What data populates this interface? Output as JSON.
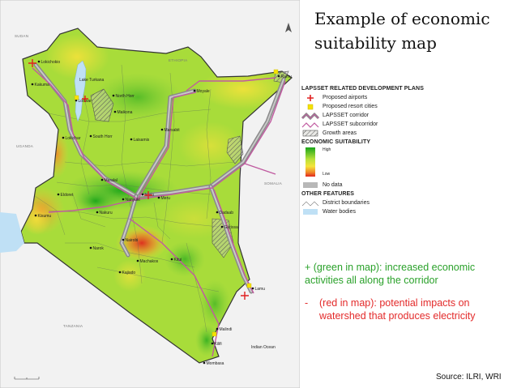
{
  "title_lines": [
    "Example of economic",
    "suitability map"
  ],
  "legend": {
    "dev_plans_heading": "LAPSSET RELATED DEVELOPMENT PLANS",
    "proposed_airports": "Proposed airports",
    "proposed_resort_cities": "Proposed resort cities",
    "lapsset_corridor": "LAPSSET corridor",
    "lapsset_subcorridor": "LAPSSET subcorridor",
    "growth_areas": "Growth areas",
    "suitability_heading": "ECONOMIC SUITABILITY",
    "high": "High",
    "low": "Low",
    "no_data": "No data",
    "other_heading": "OTHER FEATURES",
    "district_boundaries": "District boundaries",
    "water_bodies": "Water bodies"
  },
  "notes": {
    "green": "+ (green in map): increased economic activities all along the corridor",
    "red_dash": "-",
    "red": "(red in map): potential impacts on watershed that produces electricity"
  },
  "source": "Source: ILRI, WRI",
  "map": {
    "countries": [
      "SUDAN",
      "ETHIOPIA",
      "UGANDA",
      "SOMALIA",
      "TANZANIA"
    ],
    "lake_label": "Lake Turkana",
    "ocean_label": "Indian Ocean",
    "towns": [
      "Lokichokio",
      "Kakuma",
      "Lodwar",
      "North Horr",
      "Maikona",
      "Moyale",
      "Ramu",
      "Marsabit",
      "Lokichar",
      "South Horr",
      "Laisamis",
      "Maralal",
      "Eldoret",
      "Kisumu",
      "Nakuru",
      "Isiolo",
      "Meru",
      "Nanyuki",
      "Dadaab",
      "Garissa",
      "Nairobi",
      "Narok",
      "Machakos",
      "Kitui",
      "Kajiado",
      "Lamu",
      "Malindi",
      "Kilifi",
      "Mombasa"
    ],
    "colors": {
      "high": "#1aa51a",
      "mid": "#a8dc3a",
      "low_mid": "#f3e23a",
      "low": "#e0281e",
      "corridor": "#8a8a8a",
      "subcorridor": "#c05aa0",
      "water": "#bfe0f5",
      "airport": "#e02020",
      "resort": "#f5e200"
    }
  }
}
